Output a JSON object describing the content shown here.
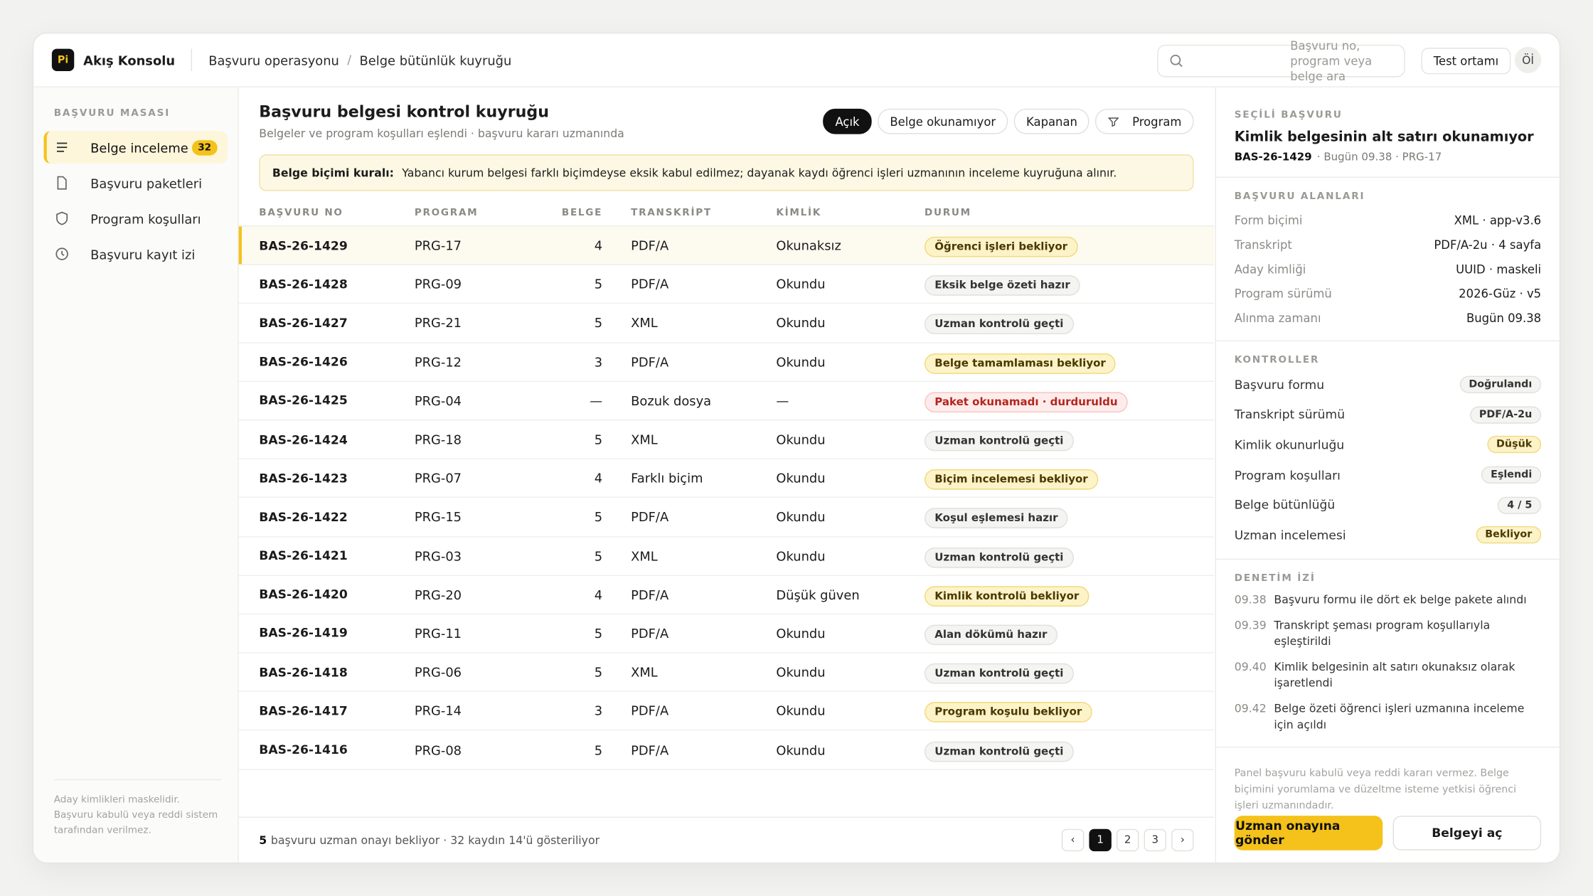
{
  "header": {
    "logo": "Pi",
    "app": "Akış Konsolu",
    "breadcrumb": [
      "Başvuru operasyonu",
      "Belge bütünlük kuyruğu"
    ],
    "search_placeholder": "Başvuru no, program veya belge ara",
    "env": "Test ortamı",
    "avatar": "Öİ"
  },
  "sidebar": {
    "section": "BAŞVURU MASASI",
    "items": [
      {
        "label": "Belge inceleme",
        "badge": "32",
        "active": true,
        "icon": "list"
      },
      {
        "label": "Başvuru paketleri",
        "icon": "doc"
      },
      {
        "label": "Program koşulları",
        "icon": "shield"
      },
      {
        "label": "Başvuru kayıt izi",
        "icon": "clock"
      }
    ],
    "note": "Aday kimlikleri maskelidir. Başvuru kabulü veya reddi sistem tarafından verilmez."
  },
  "main": {
    "title": "Başvuru belgesi kontrol kuyruğu",
    "subtitle": "Belgeler ve program koşulları eşlendi · başvuru kararı uzmanında",
    "filters": [
      {
        "label": "Açık",
        "active": true
      },
      {
        "label": "Belge okunamıyor"
      },
      {
        "label": "Kapanan"
      },
      {
        "label": "Program",
        "icon": "filter"
      }
    ],
    "notice": {
      "label": "Belge biçimi kuralı:",
      "text": "Yabancı kurum belgesi farklı biçimdeyse eksik kabul edilmez; dayanak kaydı öğrenci işleri uzmanının inceleme kuyruğuna alınır."
    },
    "table": {
      "columns": [
        "BAŞVURU NO",
        "PROGRAM",
        "BELGE",
        "TRANSKRİPT",
        "KİMLİK",
        "DURUM"
      ],
      "rows": [
        {
          "id": "BAS-26-1429",
          "program": "PRG-17",
          "docs": "4",
          "transcript": "PDF/A",
          "identity": "Okunaksız",
          "status": "Öğrenci işleri bekliyor",
          "tone": "warn",
          "selected": true
        },
        {
          "id": "BAS-26-1428",
          "program": "PRG-09",
          "docs": "5",
          "transcript": "PDF/A",
          "identity": "Okundu",
          "status": "Eksik belge özeti hazır",
          "tone": "neutral"
        },
        {
          "id": "BAS-26-1427",
          "program": "PRG-21",
          "docs": "5",
          "transcript": "XML",
          "identity": "Okundu",
          "status": "Uzman kontrolü geçti",
          "tone": "neutral"
        },
        {
          "id": "BAS-26-1426",
          "program": "PRG-12",
          "docs": "3",
          "transcript": "PDF/A",
          "identity": "Okundu",
          "status": "Belge tamamlaması bekliyor",
          "tone": "warn"
        },
        {
          "id": "BAS-26-1425",
          "program": "PRG-04",
          "docs": "—",
          "transcript": "Bozuk dosya",
          "identity": "—",
          "status": "Paket okunamadı · durduruldu",
          "tone": "danger"
        },
        {
          "id": "BAS-26-1424",
          "program": "PRG-18",
          "docs": "5",
          "transcript": "XML",
          "identity": "Okundu",
          "status": "Uzman kontrolü geçti",
          "tone": "neutral"
        },
        {
          "id": "BAS-26-1423",
          "program": "PRG-07",
          "docs": "4",
          "transcript": "Farklı biçim",
          "identity": "Okundu",
          "status": "Biçim incelemesi bekliyor",
          "tone": "warn"
        },
        {
          "id": "BAS-26-1422",
          "program": "PRG-15",
          "docs": "5",
          "transcript": "PDF/A",
          "identity": "Okundu",
          "status": "Koşul eşlemesi hazır",
          "tone": "neutral"
        },
        {
          "id": "BAS-26-1421",
          "program": "PRG-03",
          "docs": "5",
          "transcript": "XML",
          "identity": "Okundu",
          "status": "Uzman kontrolü geçti",
          "tone": "neutral"
        },
        {
          "id": "BAS-26-1420",
          "program": "PRG-20",
          "docs": "4",
          "transcript": "PDF/A",
          "identity": "Düşük güven",
          "status": "Kimlik kontrolü bekliyor",
          "tone": "warn"
        },
        {
          "id": "BAS-26-1419",
          "program": "PRG-11",
          "docs": "5",
          "transcript": "PDF/A",
          "identity": "Okundu",
          "status": "Alan dökümü hazır",
          "tone": "neutral"
        },
        {
          "id": "BAS-26-1418",
          "program": "PRG-06",
          "docs": "5",
          "transcript": "XML",
          "identity": "Okundu",
          "status": "Uzman kontrolü geçti",
          "tone": "neutral"
        },
        {
          "id": "BAS-26-1417",
          "program": "PRG-14",
          "docs": "3",
          "transcript": "PDF/A",
          "identity": "Okundu",
          "status": "Program koşulu bekliyor",
          "tone": "warn"
        },
        {
          "id": "BAS-26-1416",
          "program": "PRG-08",
          "docs": "5",
          "transcript": "PDF/A",
          "identity": "Okundu",
          "status": "Uzman kontrolü geçti",
          "tone": "neutral"
        }
      ]
    },
    "footer": {
      "count": "5",
      "text": "başvuru uzman onayı bekliyor · 32 kaydın 14'ü gösteriliyor"
    },
    "pager": {
      "prev": "‹",
      "pages": [
        {
          "label": "1",
          "active": true
        },
        {
          "label": "2"
        },
        {
          "label": "3"
        }
      ],
      "next": "›"
    }
  },
  "panel": {
    "section": "SEÇİLİ BAŞVURU",
    "title": "Kimlik belgesinin alt satırı okunamıyor",
    "id": "BAS-26-1429",
    "meta": "· Bugün 09.38 · PRG-17",
    "fields_title": "BAŞVURU ALANLARI",
    "fields": [
      {
        "label": "Form biçimi",
        "value": "XML · app-v3.6"
      },
      {
        "label": "Transkript",
        "value": "PDF/A-2u · 4 sayfa"
      },
      {
        "label": "Aday kimliği",
        "value": "UUID · maskeli"
      },
      {
        "label": "Program sürümü",
        "value": "2026-Güz · v5"
      },
      {
        "label": "Alınma zamanı",
        "value": "Bugün 09.38"
      }
    ],
    "checks_title": "KONTROLLER",
    "checks": [
      {
        "label": "Başvuru formu",
        "value": "Doğrulandı",
        "tone": "neutral"
      },
      {
        "label": "Transkript sürümü",
        "value": "PDF/A-2u",
        "tone": "neutral"
      },
      {
        "label": "Kimlik okunurluğu",
        "value": "Düşük",
        "tone": "warn"
      },
      {
        "label": "Program koşulları",
        "value": "Eşlendi",
        "tone": "neutral"
      },
      {
        "label": "Belge bütünlüğü",
        "value": "4 / 5",
        "tone": "neutral"
      },
      {
        "label": "Uzman incelemesi",
        "value": "Bekliyor",
        "tone": "warn"
      }
    ],
    "audit_title": "DENETİM İZİ",
    "audit": [
      {
        "time": "09.38",
        "text": "Başvuru formu ile dört ek belge pakete alındı"
      },
      {
        "time": "09.39",
        "text": "Transkript şeması program koşullarıyla eşleştirildi"
      },
      {
        "time": "09.40",
        "text": "Kimlik belgesinin alt satırı okunaksız olarak işaretlendi"
      },
      {
        "time": "09.42",
        "text": "Belge özeti öğrenci işleri uzmanına inceleme için açıldı"
      }
    ],
    "note": "Panel başvuru kabulü veya reddi kararı vermez. Belge biçimini yorumlama ve düzeltme isteme yetkisi öğrenci işleri uzmanındadır.",
    "primary": "Uzman onayına gönder",
    "secondary": "Belgeyi aç"
  }
}
